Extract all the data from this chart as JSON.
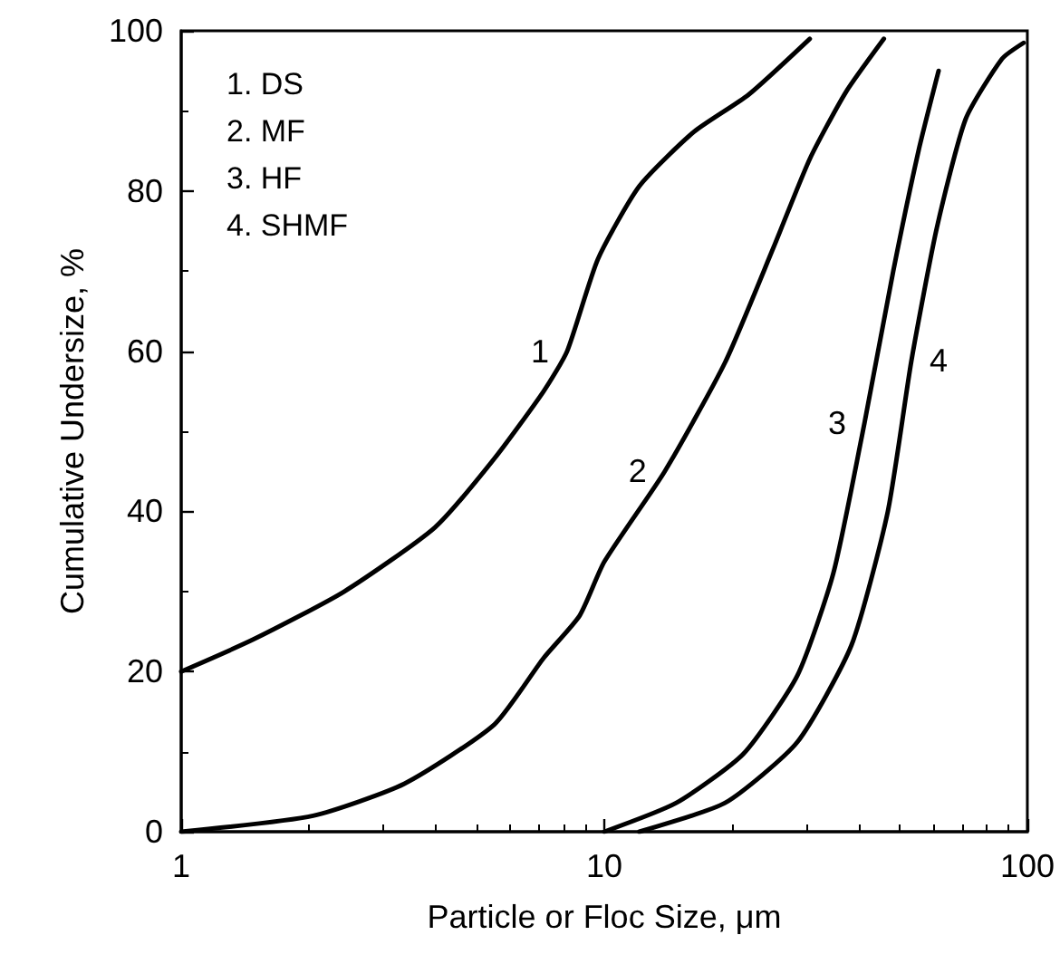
{
  "chart_data": {
    "type": "line",
    "xlabel": "Particle or Floc Size, μm",
    "ylabel": "Cumulative Undersize, %",
    "log": "x",
    "xlim": [
      1,
      100
    ],
    "xticks": [
      1,
      10,
      100
    ],
    "ylim": [
      0,
      100
    ],
    "yticks": [
      0,
      20,
      40,
      60,
      80,
      100
    ],
    "grid": false,
    "marker": "none",
    "line_style": "solid",
    "series": [
      {
        "name": "1",
        "color": "#000000",
        "x": [
          1,
          1.48,
          2.43,
          3.98,
          5.5,
          7.19,
          8.17,
          9.66,
          12.1,
          16.3,
          21.9,
          30.6
        ],
        "values": [
          20,
          24,
          30,
          38,
          46.6,
          55,
          60,
          71.5,
          80.6,
          87.4,
          92,
          99
        ]
      },
      {
        "name": "2",
        "color": "#000000",
        "x": [
          1,
          2.05,
          3.37,
          5.5,
          7.19,
          8.75,
          10,
          13.9,
          19.3,
          25.1,
          30.6,
          37.2,
          45.8
        ],
        "values": [
          0,
          2,
          6,
          13.4,
          21.7,
          27,
          33.7,
          45,
          58.6,
          72.9,
          84,
          92.3,
          99
        ]
      },
      {
        "name": "3",
        "color": "#000000",
        "x": [
          10,
          14.8,
          21.3,
          28.6,
          34.8,
          41.2,
          48.2,
          55.3,
          61.7
        ],
        "values": [
          0,
          3.6,
          9.7,
          19.5,
          32.3,
          51,
          70,
          85,
          95
        ]
      },
      {
        "name": "4",
        "color": "#000000",
        "x": [
          12.1,
          19.3,
          28.6,
          38.4,
          46.8,
          53.2,
          61.1,
          71.5,
          87.1,
          98
        ],
        "values": [
          0,
          3.6,
          11.2,
          23.3,
          40,
          58.8,
          75.4,
          89,
          96.5,
          98.5
        ]
      }
    ],
    "annotations": [
      "1. DS",
      "2. MF",
      "3. HF",
      "4. SHMF"
    ]
  }
}
